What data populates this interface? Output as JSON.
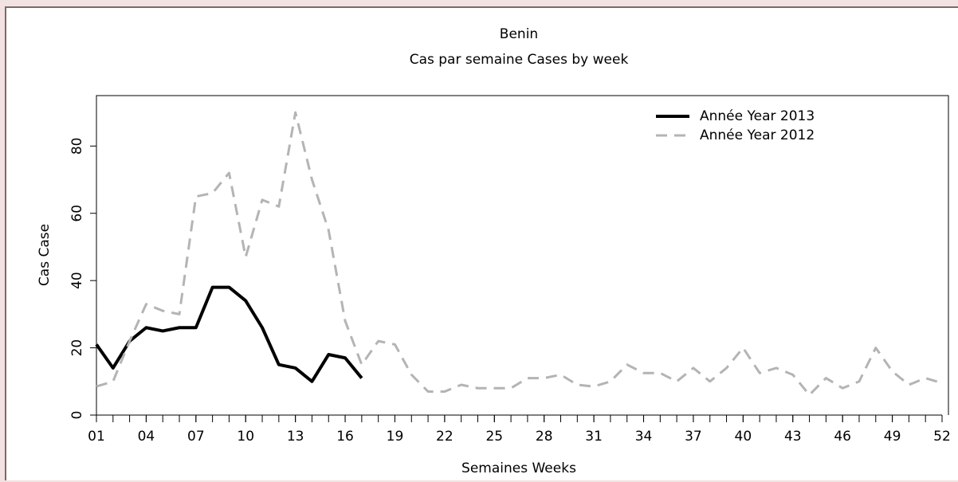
{
  "chart_data": {
    "type": "line",
    "title": "Benin",
    "subtitle": "Cas par semaine Cases by week",
    "x_label": "Semaines Weeks",
    "y_label": "Cas Case",
    "xlim": [
      1,
      52
    ],
    "ylim": [
      0,
      95
    ],
    "yticks": [
      0,
      20,
      40,
      60,
      80
    ],
    "xticks": [
      {
        "value": 1,
        "label": "01"
      },
      {
        "value": 4,
        "label": "04"
      },
      {
        "value": 7,
        "label": "07"
      },
      {
        "value": 10,
        "label": "10"
      },
      {
        "value": 13,
        "label": "13"
      },
      {
        "value": 16,
        "label": "16"
      },
      {
        "value": 19,
        "label": "19"
      },
      {
        "value": 22,
        "label": "22"
      },
      {
        "value": 25,
        "label": "25"
      },
      {
        "value": 28,
        "label": "28"
      },
      {
        "value": 31,
        "label": "31"
      },
      {
        "value": 34,
        "label": "34"
      },
      {
        "value": 37,
        "label": "37"
      },
      {
        "value": 40,
        "label": "40"
      },
      {
        "value": 43,
        "label": "43"
      },
      {
        "value": 46,
        "label": "46"
      },
      {
        "value": 49,
        "label": "49"
      },
      {
        "value": 52,
        "label": "52"
      }
    ],
    "xminorticks": [
      1,
      2,
      3,
      4,
      5,
      6,
      7,
      8,
      9,
      10,
      11,
      12,
      13,
      14,
      15,
      16,
      17,
      18,
      19,
      20,
      21,
      22,
      23,
      24,
      25,
      26,
      27,
      28,
      29,
      30,
      31,
      32,
      33,
      34,
      35,
      36,
      37,
      38,
      39,
      40,
      41,
      42,
      43,
      44,
      45,
      46,
      47,
      48,
      49,
      50,
      51,
      52
    ],
    "legend": "top-right",
    "series": [
      {
        "name": "Année Year 2013",
        "color": "#000000",
        "dashed": false,
        "width": 4,
        "x": [
          1,
          2,
          3,
          4,
          5,
          6,
          7,
          8,
          9,
          10,
          11,
          12,
          13,
          14,
          15,
          16,
          17
        ],
        "values": [
          21,
          14,
          22,
          26,
          25,
          26,
          26,
          38,
          38,
          34,
          26,
          15,
          14,
          10,
          18,
          17,
          11
        ]
      },
      {
        "name": "Année Year 2012",
        "color": "#b4b4b4",
        "dashed": true,
        "width": 3,
        "x": [
          1,
          2,
          3,
          4,
          5,
          6,
          7,
          8,
          9,
          10,
          11,
          12,
          13,
          14,
          15,
          16,
          17,
          18,
          19,
          20,
          21,
          22,
          23,
          24,
          25,
          26,
          27,
          28,
          29,
          30,
          31,
          32,
          33,
          34,
          35,
          36,
          37,
          38,
          39,
          40,
          41,
          42,
          43,
          44,
          45,
          46,
          47,
          48,
          49,
          50,
          51,
          52
        ],
        "values": [
          8.5,
          10,
          22,
          33,
          31,
          30,
          65,
          66,
          72,
          47,
          64,
          62,
          90,
          70,
          55,
          28,
          15,
          22,
          21,
          12,
          7,
          7,
          9,
          8,
          8,
          8,
          11,
          11,
          12,
          9,
          8.5,
          10,
          15,
          12.5,
          12.5,
          10,
          14,
          10,
          14,
          20,
          12.5,
          14,
          12,
          6,
          11,
          8,
          10,
          20,
          13,
          9,
          11,
          9.5
        ]
      }
    ]
  }
}
